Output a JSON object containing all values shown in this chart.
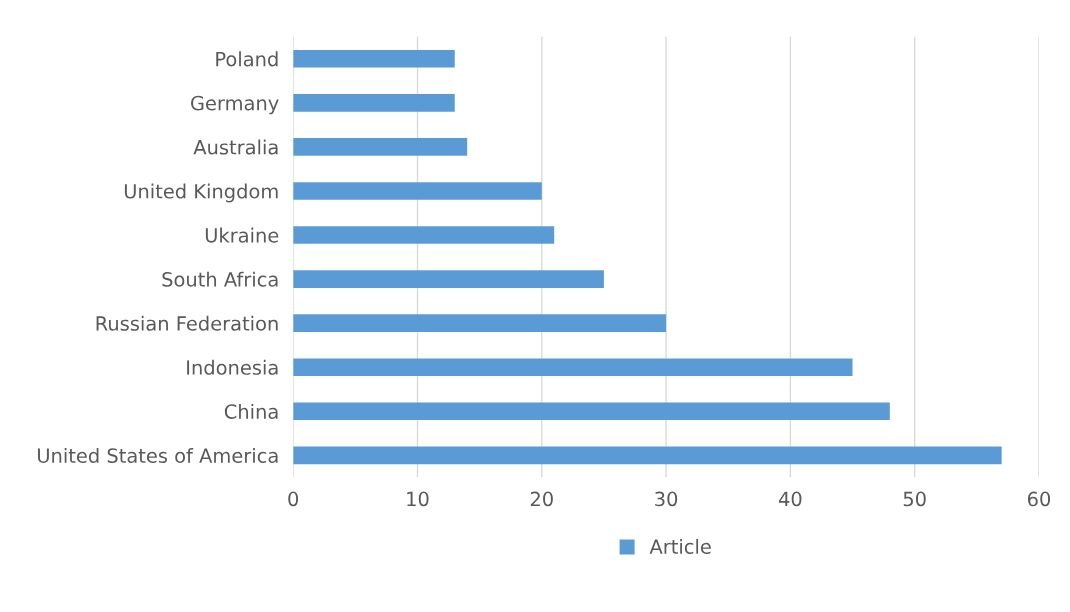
{
  "chart_data": {
    "type": "bar",
    "orientation": "horizontal",
    "categories": [
      "Poland",
      "Germany",
      "Australia",
      "United Kingdom",
      "Ukraine",
      "South Africa",
      "Russian Federation",
      "Indonesia",
      "China",
      "United States of America"
    ],
    "series": [
      {
        "name": "Article",
        "color": "#5b9bd5",
        "values": [
          13,
          13,
          14,
          20,
          21,
          25,
          30,
          45,
          48,
          57
        ]
      }
    ],
    "xlim": [
      0,
      60
    ],
    "xticks": [
      0,
      10,
      20,
      30,
      40,
      50,
      60
    ],
    "grid": "x",
    "legend": "bottom"
  }
}
